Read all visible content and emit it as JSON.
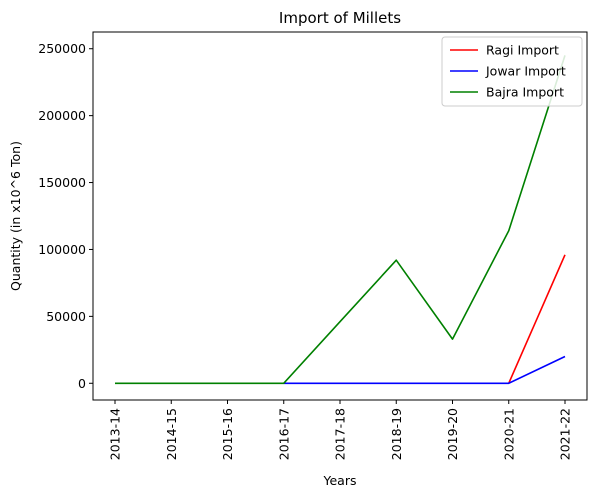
{
  "chart_data": {
    "type": "line",
    "title": "Import of Millets",
    "xlabel": "Years",
    "ylabel": "Quantity (in x10^6 Ton)",
    "categories": [
      "2013-14",
      "2014-15",
      "2015-16",
      "2016-17",
      "2017-18",
      "2018-19",
      "2019-20",
      "2020-21",
      "2021-22"
    ],
    "ylim": [
      -12500,
      262500
    ],
    "yticks": [
      0,
      50000,
      100000,
      150000,
      200000,
      250000
    ],
    "grid": false,
    "legend_position": "top-right",
    "series": [
      {
        "name": "Ragi Import",
        "color": "#ff0000",
        "start_index": 7,
        "values": [
          null,
          null,
          null,
          null,
          null,
          null,
          null,
          0,
          96000
        ]
      },
      {
        "name": "Jowar Import",
        "color": "#0000ff",
        "start_index": 3,
        "values": [
          null,
          null,
          null,
          0,
          0,
          0,
          0,
          0,
          20000
        ]
      },
      {
        "name": "Bajra Import",
        "color": "#008000",
        "start_index": 0,
        "values": [
          0,
          0,
          0,
          0,
          46000,
          92000,
          33000,
          114000,
          245000
        ]
      }
    ]
  }
}
